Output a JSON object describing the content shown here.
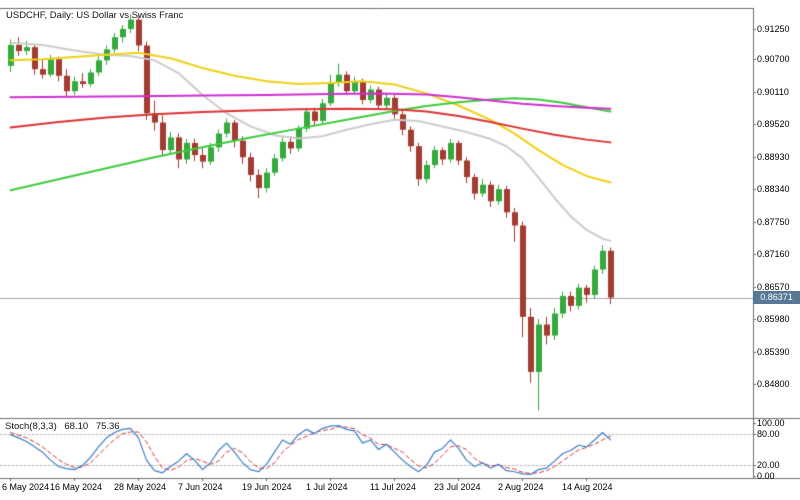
{
  "header": {
    "title": "USDCHF, Daily: US Dollar vs Swiss Franc"
  },
  "indicator_pane": {
    "label": "Stoch(8,3,3)",
    "value_main": "68.10",
    "value_signal": "75.36",
    "ticks": [
      {
        "text": "100.00",
        "value": 100
      },
      {
        "text": "80.00",
        "value": 80
      },
      {
        "text": "20.00",
        "value": 20
      },
      {
        "text": "0.00",
        "value": 0
      }
    ]
  },
  "price_scale": {
    "ticks": [
      {
        "text": "0.91250",
        "value": 0.9125
      },
      {
        "text": "0.90700",
        "value": 0.907
      },
      {
        "text": "0.90110",
        "value": 0.9011
      },
      {
        "text": "0.89520",
        "value": 0.8952
      },
      {
        "text": "0.88930",
        "value": 0.8893
      },
      {
        "text": "0.88340",
        "value": 0.8834
      },
      {
        "text": "0.87750",
        "value": 0.8775
      },
      {
        "text": "0.87160",
        "value": 0.8716
      },
      {
        "text": "0.86570",
        "value": 0.8657
      },
      {
        "text": "0.85980",
        "value": 0.8598
      },
      {
        "text": "0.85390",
        "value": 0.8539
      },
      {
        "text": "0.84800",
        "value": 0.848
      }
    ],
    "current_badge": {
      "text": "0.86371",
      "value": 0.86371
    }
  },
  "time_scale": {
    "labels": [
      {
        "text": "6 May 2024",
        "index": 0
      },
      {
        "text": "16 May 2024",
        "index": 8
      },
      {
        "text": "28 May 2024",
        "index": 16
      },
      {
        "text": "7 Jun 2024",
        "index": 24
      },
      {
        "text": "19 Jun 2024",
        "index": 32
      },
      {
        "text": "1 Jul 2024",
        "index": 40
      },
      {
        "text": "11 Jul 2024",
        "index": 48
      },
      {
        "text": "23 Jul 2024",
        "index": 56
      },
      {
        "text": "2 Aug 2024",
        "index": 64
      },
      {
        "text": "14 Aug 2024",
        "index": 72
      }
    ]
  },
  "colors": {
    "background": "#ffffff",
    "border": "#6f6f6f",
    "bull": "#35a93c",
    "bear": "#a23b31",
    "current_line": "#a8a8a8",
    "badge_bg": "#567795",
    "badge_text": "#ffffff",
    "stoch_k": "#3f7fca",
    "stoch_d": "#d23b3b",
    "level_dash": "#bcbcbc",
    "text": "#000000"
  },
  "chart_data": {
    "type": "candlestick",
    "symbol": "USDCHF",
    "timeframe": "Daily",
    "title": "USDCHF, Daily: US Dollar vs Swiss Franc",
    "y_axis": {
      "min": 0.843,
      "max": 0.916
    },
    "last_price": 0.86371,
    "candles": [
      [
        0.9058,
        0.9106,
        0.9047,
        0.9096
      ],
      [
        0.9096,
        0.911,
        0.9076,
        0.9085
      ],
      [
        0.9085,
        0.9103,
        0.9078,
        0.9092
      ],
      [
        0.9092,
        0.9098,
        0.9042,
        0.9052
      ],
      [
        0.9052,
        0.907,
        0.9035,
        0.9042
      ],
      [
        0.9042,
        0.9078,
        0.9038,
        0.907
      ],
      [
        0.907,
        0.9075,
        0.903,
        0.904
      ],
      [
        0.904,
        0.9052,
        0.9002,
        0.9012
      ],
      [
        0.9012,
        0.9038,
        0.9005,
        0.903
      ],
      [
        0.903,
        0.9045,
        0.9018,
        0.9025
      ],
      [
        0.9025,
        0.9052,
        0.902,
        0.9046
      ],
      [
        0.9046,
        0.9075,
        0.904,
        0.9068
      ],
      [
        0.9068,
        0.9095,
        0.906,
        0.9088
      ],
      [
        0.9088,
        0.9118,
        0.9082,
        0.911
      ],
      [
        0.911,
        0.9132,
        0.91,
        0.9125
      ],
      [
        0.9125,
        0.9152,
        0.9118,
        0.9142
      ],
      [
        0.9142,
        0.915,
        0.9085,
        0.9095
      ],
      [
        0.9095,
        0.9102,
        0.896,
        0.8972
      ],
      [
        0.8972,
        0.8995,
        0.894,
        0.8955
      ],
      [
        0.8955,
        0.8968,
        0.8895,
        0.8905
      ],
      [
        0.8905,
        0.8938,
        0.8898,
        0.8928
      ],
      [
        0.8928,
        0.8935,
        0.8872,
        0.8888
      ],
      [
        0.8888,
        0.8925,
        0.888,
        0.8918
      ],
      [
        0.8918,
        0.8926,
        0.8885,
        0.8896
      ],
      [
        0.8896,
        0.891,
        0.8872,
        0.8884
      ],
      [
        0.8884,
        0.8918,
        0.8878,
        0.891
      ],
      [
        0.891,
        0.8942,
        0.8902,
        0.8935
      ],
      [
        0.8935,
        0.8962,
        0.8928,
        0.8955
      ],
      [
        0.8955,
        0.896,
        0.891,
        0.8922
      ],
      [
        0.8922,
        0.893,
        0.888,
        0.8892
      ],
      [
        0.8892,
        0.89,
        0.8848,
        0.886
      ],
      [
        0.886,
        0.887,
        0.8818,
        0.8836
      ],
      [
        0.8836,
        0.8872,
        0.8828,
        0.8864
      ],
      [
        0.8864,
        0.8898,
        0.8858,
        0.889
      ],
      [
        0.889,
        0.8928,
        0.8884,
        0.892
      ],
      [
        0.892,
        0.893,
        0.8898,
        0.8908
      ],
      [
        0.8908,
        0.895,
        0.8902,
        0.8944
      ],
      [
        0.8944,
        0.8982,
        0.8938,
        0.8975
      ],
      [
        0.8975,
        0.8982,
        0.8948,
        0.8958
      ],
      [
        0.8958,
        0.8998,
        0.8952,
        0.899
      ],
      [
        0.899,
        0.9042,
        0.8985,
        0.9028
      ],
      [
        0.9028,
        0.9062,
        0.902,
        0.9042
      ],
      [
        0.9042,
        0.9048,
        0.9005,
        0.9012
      ],
      [
        0.9012,
        0.9038,
        0.9005,
        0.903
      ],
      [
        0.903,
        0.9035,
        0.8988,
        0.8996
      ],
      [
        0.8996,
        0.9022,
        0.899,
        0.9015
      ],
      [
        0.9015,
        0.902,
        0.8978,
        0.8986
      ],
      [
        0.8986,
        0.9008,
        0.8978,
        0.9
      ],
      [
        0.9,
        0.9005,
        0.8962,
        0.897
      ],
      [
        0.897,
        0.8976,
        0.8932,
        0.8942
      ],
      [
        0.8942,
        0.8948,
        0.8902,
        0.8912
      ],
      [
        0.8912,
        0.8918,
        0.884,
        0.8852
      ],
      [
        0.8852,
        0.8886,
        0.8845,
        0.8878
      ],
      [
        0.8878,
        0.8912,
        0.8872,
        0.8905
      ],
      [
        0.8905,
        0.891,
        0.8878,
        0.8888
      ],
      [
        0.8888,
        0.8925,
        0.8882,
        0.8918
      ],
      [
        0.8918,
        0.8922,
        0.8878,
        0.8886
      ],
      [
        0.8886,
        0.8892,
        0.8845,
        0.8856
      ],
      [
        0.8856,
        0.8862,
        0.8815,
        0.8826
      ],
      [
        0.8826,
        0.8852,
        0.882,
        0.8842
      ],
      [
        0.8842,
        0.8848,
        0.8802,
        0.8812
      ],
      [
        0.8812,
        0.8842,
        0.8806,
        0.8834
      ],
      [
        0.8834,
        0.884,
        0.8782,
        0.8792
      ],
      [
        0.8792,
        0.88,
        0.8738,
        0.8768
      ],
      [
        0.8768,
        0.8775,
        0.8565,
        0.8602
      ],
      [
        0.8602,
        0.8618,
        0.8482,
        0.8502
      ],
      [
        0.8502,
        0.8598,
        0.8432,
        0.8588
      ],
      [
        0.8588,
        0.8602,
        0.8552,
        0.8568
      ],
      [
        0.8568,
        0.8618,
        0.856,
        0.8608
      ],
      [
        0.8608,
        0.8648,
        0.86,
        0.864
      ],
      [
        0.864,
        0.8648,
        0.8612,
        0.8622
      ],
      [
        0.8622,
        0.8662,
        0.8615,
        0.8655
      ],
      [
        0.8655,
        0.866,
        0.8628,
        0.8642
      ],
      [
        0.8642,
        0.8695,
        0.8635,
        0.8688
      ],
      [
        0.8688,
        0.8732,
        0.868,
        0.8722
      ],
      [
        0.8722,
        0.8728,
        0.8625,
        0.8637
      ]
    ],
    "overlays": [
      {
        "name": "ma-gray",
        "color": "#cccccc",
        "width": 2,
        "points": [
          [
            0,
            0.91
          ],
          [
            4,
            0.9096
          ],
          [
            8,
            0.9086
          ],
          [
            12,
            0.9078
          ],
          [
            15,
            0.9076
          ],
          [
            18,
            0.9068
          ],
          [
            21,
            0.9045
          ],
          [
            24,
            0.9005
          ],
          [
            27,
            0.8972
          ],
          [
            30,
            0.8948
          ],
          [
            33,
            0.8932
          ],
          [
            36,
            0.8926
          ],
          [
            39,
            0.893
          ],
          [
            42,
            0.8942
          ],
          [
            45,
            0.8952
          ],
          [
            48,
            0.896
          ],
          [
            51,
            0.8958
          ],
          [
            54,
            0.8948
          ],
          [
            57,
            0.8938
          ],
          [
            60,
            0.8925
          ],
          [
            62,
            0.8912
          ],
          [
            64,
            0.889
          ],
          [
            66,
            0.8855
          ],
          [
            68,
            0.8818
          ],
          [
            70,
            0.8785
          ],
          [
            72,
            0.876
          ],
          [
            74,
            0.8744
          ],
          [
            75,
            0.874
          ]
        ]
      },
      {
        "name": "ma-yellow",
        "color": "#efd117",
        "width": 2,
        "points": [
          [
            0,
            0.9068
          ],
          [
            4,
            0.907
          ],
          [
            8,
            0.9074
          ],
          [
            12,
            0.9078
          ],
          [
            16,
            0.9082
          ],
          [
            20,
            0.9072
          ],
          [
            24,
            0.9054
          ],
          [
            28,
            0.904
          ],
          [
            32,
            0.903
          ],
          [
            36,
            0.9025
          ],
          [
            40,
            0.9027
          ],
          [
            44,
            0.903
          ],
          [
            48,
            0.9024
          ],
          [
            52,
            0.9008
          ],
          [
            56,
            0.8986
          ],
          [
            60,
            0.896
          ],
          [
            63,
            0.8935
          ],
          [
            66,
            0.8905
          ],
          [
            69,
            0.8878
          ],
          [
            72,
            0.8858
          ],
          [
            75,
            0.8846
          ]
        ]
      },
      {
        "name": "ma-green",
        "color": "#3ccc3c",
        "width": 2,
        "points": [
          [
            0,
            0.8832
          ],
          [
            6,
            0.8852
          ],
          [
            12,
            0.8872
          ],
          [
            18,
            0.8892
          ],
          [
            24,
            0.891
          ],
          [
            30,
            0.8928
          ],
          [
            36,
            0.8944
          ],
          [
            42,
            0.896
          ],
          [
            48,
            0.8976
          ],
          [
            52,
            0.8985
          ],
          [
            56,
            0.8992
          ],
          [
            60,
            0.8997
          ],
          [
            63,
            0.8999
          ],
          [
            66,
            0.8997
          ],
          [
            69,
            0.8991
          ],
          [
            72,
            0.8983
          ],
          [
            75,
            0.8975
          ]
        ]
      },
      {
        "name": "ma-red",
        "color": "#dd3333",
        "width": 2,
        "points": [
          [
            0,
            0.8946
          ],
          [
            6,
            0.8956
          ],
          [
            12,
            0.8964
          ],
          [
            18,
            0.897
          ],
          [
            24,
            0.8974
          ],
          [
            30,
            0.8977
          ],
          [
            36,
            0.8979
          ],
          [
            42,
            0.898
          ],
          [
            48,
            0.8979
          ],
          [
            52,
            0.8975
          ],
          [
            56,
            0.8967
          ],
          [
            60,
            0.8956
          ],
          [
            64,
            0.8944
          ],
          [
            68,
            0.8933
          ],
          [
            72,
            0.8924
          ],
          [
            75,
            0.8919
          ]
        ]
      },
      {
        "name": "ma-magenta",
        "color": "#d12fd1",
        "width": 2,
        "points": [
          [
            0,
            0.9001
          ],
          [
            8,
            0.9002
          ],
          [
            16,
            0.9003
          ],
          [
            24,
            0.9004
          ],
          [
            32,
            0.9005
          ],
          [
            40,
            0.9007
          ],
          [
            46,
            0.9008
          ],
          [
            52,
            0.9006
          ],
          [
            56,
            0.9001
          ],
          [
            60,
            0.8995
          ],
          [
            64,
            0.8989
          ],
          [
            68,
            0.8985
          ],
          [
            72,
            0.8982
          ],
          [
            75,
            0.898
          ]
        ]
      }
    ],
    "oscillator": {
      "name": "Stoch(8,3,3)",
      "range": [
        0,
        100
      ],
      "levels": [
        80,
        20
      ],
      "k_last": 68.1,
      "d_last": 75.36,
      "k": [
        78,
        72,
        65,
        55,
        45,
        30,
        18,
        14,
        12,
        20,
        35,
        55,
        72,
        82,
        88,
        90,
        72,
        30,
        10,
        6,
        18,
        28,
        42,
        30,
        12,
        25,
        48,
        62,
        45,
        25,
        12,
        8,
        22,
        45,
        68,
        60,
        78,
        88,
        80,
        90,
        94,
        95,
        88,
        85,
        62,
        68,
        50,
        60,
        45,
        30,
        18,
        8,
        20,
        45,
        52,
        68,
        52,
        30,
        18,
        25,
        15,
        22,
        10,
        8,
        4,
        3,
        12,
        15,
        28,
        42,
        48,
        58,
        55,
        68,
        82,
        68.1
      ],
      "d": [
        82,
        77,
        72,
        64,
        55,
        43,
        31,
        22,
        16,
        17,
        25,
        40,
        55,
        69,
        80,
        83,
        83,
        64,
        37,
        15,
        11,
        17,
        29,
        33,
        28,
        22,
        28,
        45,
        52,
        44,
        27,
        15,
        14,
        25,
        45,
        58,
        69,
        75,
        82,
        86,
        88,
        93,
        92,
        89,
        78,
        71,
        60,
        59,
        52,
        45,
        31,
        19,
        15,
        24,
        39,
        55,
        57,
        50,
        33,
        24,
        19,
        21,
        16,
        13,
        7,
        5,
        6,
        10,
        18,
        28,
        39,
        49,
        54,
        60,
        68,
        75.36
      ]
    }
  }
}
